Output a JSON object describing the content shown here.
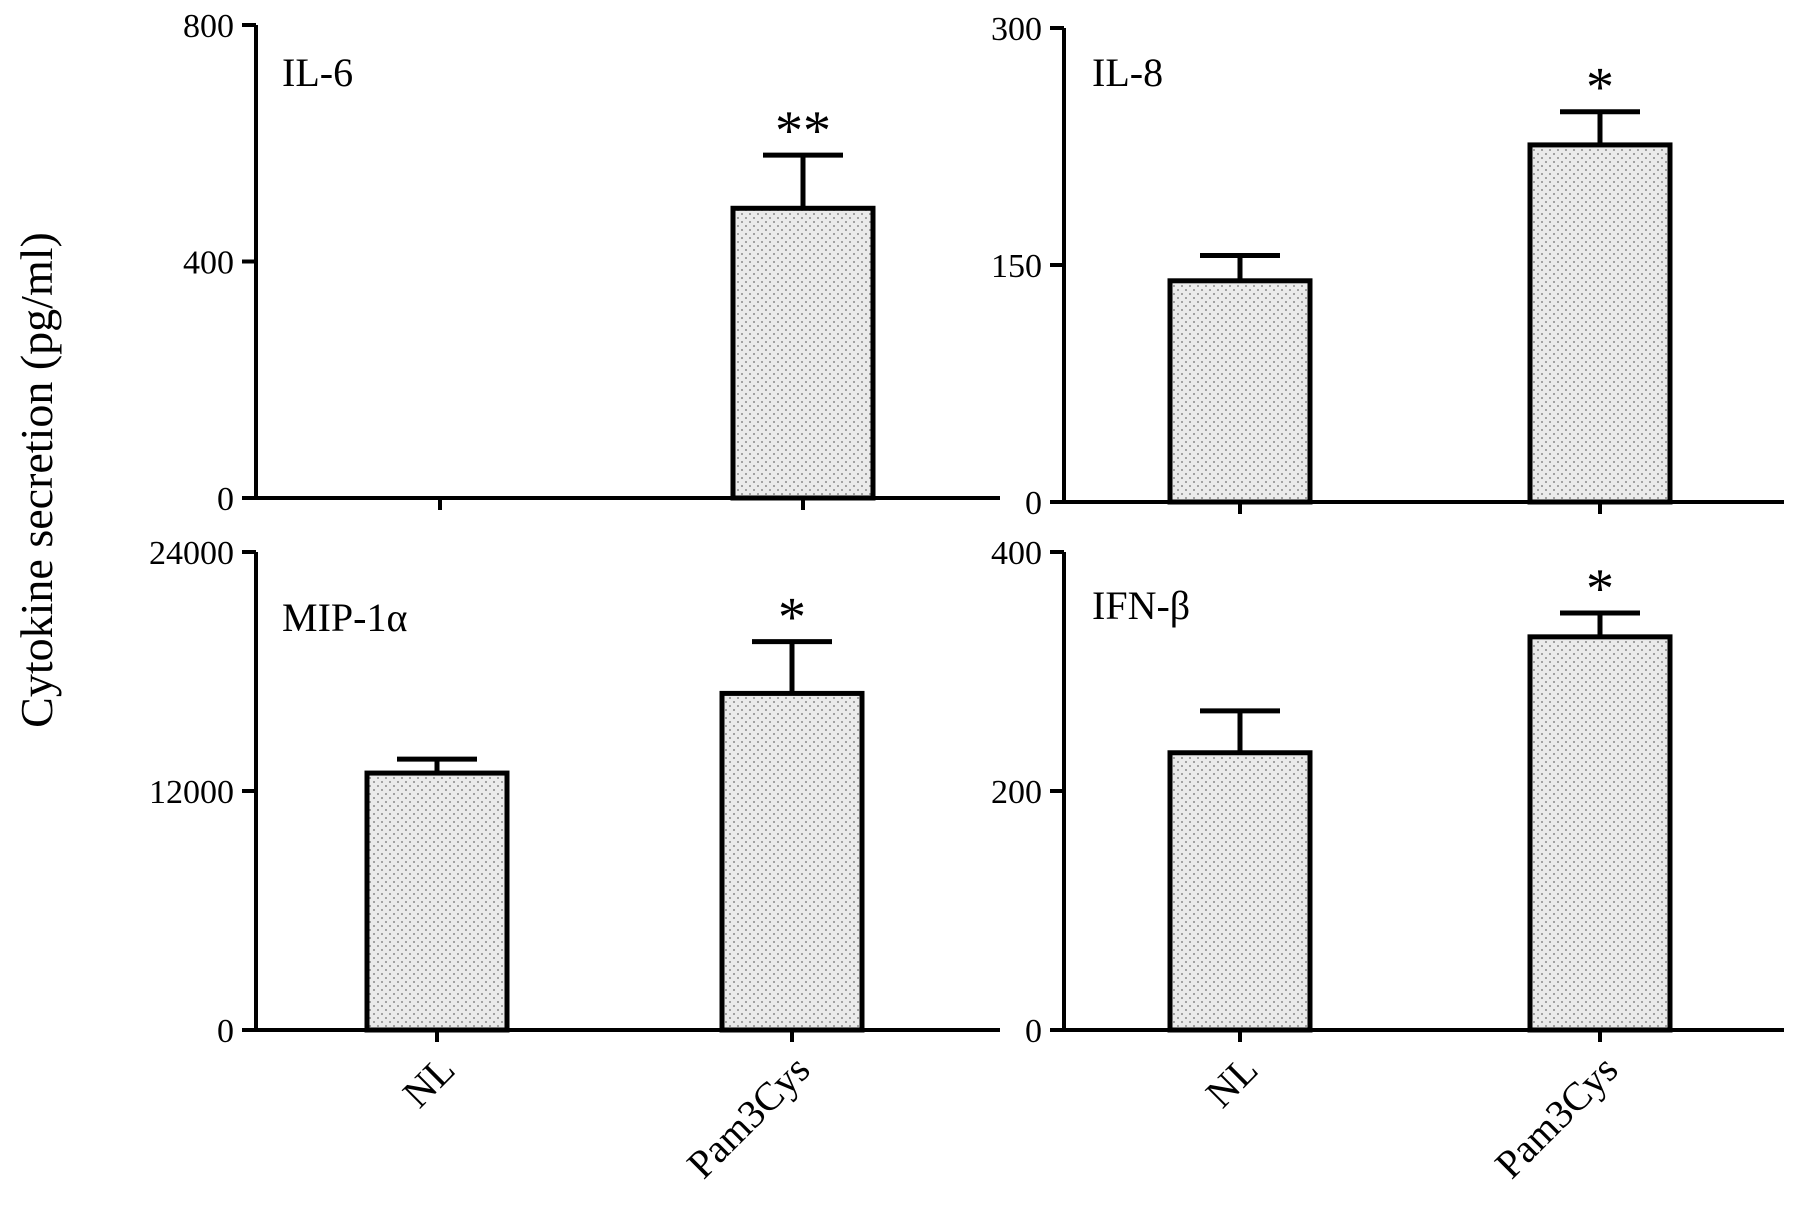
{
  "figure": {
    "ylabel": "Cytokine secretion (pg/ml)"
  },
  "chart_data": [
    {
      "type": "bar",
      "panel_label": "IL-6",
      "categories": [
        "NL",
        "Pam3Cys"
      ],
      "values": [
        0,
        490
      ],
      "errors": [
        0,
        90
      ],
      "significance": [
        "",
        "**"
      ],
      "yticks": [
        0,
        400,
        800
      ],
      "ylim": [
        0,
        800
      ],
      "grid": false
    },
    {
      "type": "bar",
      "panel_label": "IL-8",
      "categories": [
        "NL",
        "Pam3Cys"
      ],
      "values": [
        140,
        226
      ],
      "errors": [
        16,
        21
      ],
      "significance": [
        "",
        "*"
      ],
      "yticks": [
        0,
        150,
        300
      ],
      "ylim": [
        0,
        300
      ],
      "grid": false
    },
    {
      "type": "bar",
      "panel_label": "MIP-1α",
      "categories": [
        "NL",
        "Pam3Cys"
      ],
      "values": [
        12900,
        16900
      ],
      "errors": [
        700,
        2600
      ],
      "significance": [
        "",
        "*"
      ],
      "yticks": [
        0,
        12000,
        24000
      ],
      "ylim": [
        0,
        24000
      ],
      "grid": false
    },
    {
      "type": "bar",
      "panel_label": "IFN-β",
      "categories": [
        "NL",
        "Pam3Cys"
      ],
      "values": [
        232,
        329
      ],
      "errors": [
        35,
        20
      ],
      "significance": [
        "",
        "*"
      ],
      "yticks": [
        0,
        200,
        400
      ],
      "ylim": [
        0,
        400
      ],
      "grid": false
    }
  ],
  "style": {
    "bar_fill": "#ebebeb",
    "bar_dot": "#8a8a8a",
    "ink": "#000000"
  }
}
